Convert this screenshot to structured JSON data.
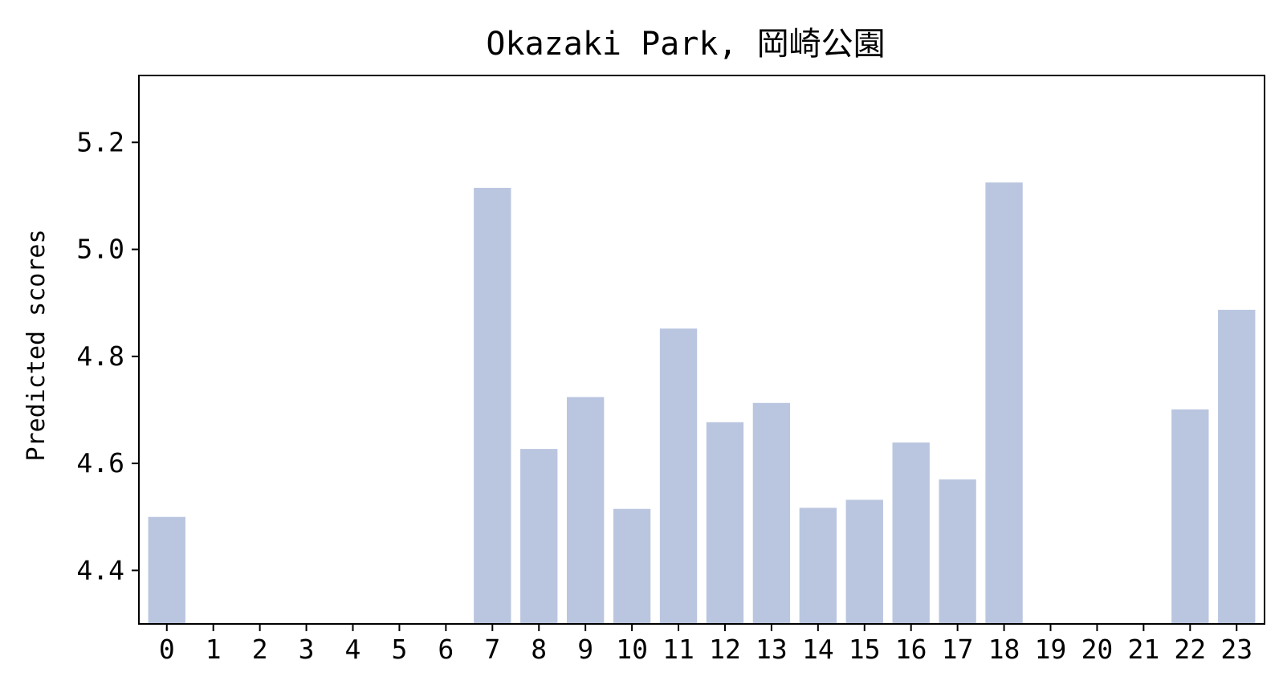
{
  "chart_data": {
    "type": "bar",
    "title": "Okazaki Park, 岡崎公園",
    "xlabel": "",
    "ylabel": "Predicted scores",
    "categories": [
      "0",
      "1",
      "2",
      "3",
      "4",
      "5",
      "6",
      "7",
      "8",
      "9",
      "10",
      "11",
      "12",
      "13",
      "14",
      "15",
      "16",
      "17",
      "18",
      "19",
      "20",
      "21",
      "22",
      "23"
    ],
    "values": [
      4.5,
      null,
      null,
      null,
      null,
      null,
      null,
      5.115,
      4.627,
      4.724,
      4.515,
      4.852,
      4.677,
      4.713,
      4.517,
      4.532,
      4.639,
      4.57,
      5.125,
      null,
      null,
      null,
      4.701,
      4.887
    ],
    "ylim": [
      4.3,
      5.325
    ],
    "yticks": [
      "4.4",
      "4.6",
      "4.8",
      "5.0",
      "5.2"
    ],
    "bar_color": "#bac6e0",
    "grid": false,
    "legend": "none"
  }
}
